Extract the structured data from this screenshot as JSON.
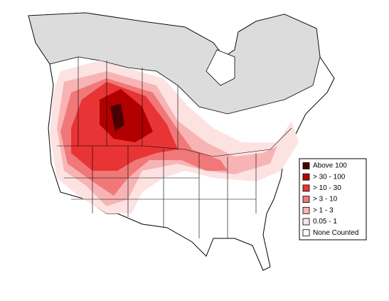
{
  "legend": {
    "items": [
      {
        "label": "Above 100",
        "color": "#4a0000"
      },
      {
        "label": "> 30 - 100",
        "color": "#b20000"
      },
      {
        "label": "> 10 - 30",
        "color": "#e83434"
      },
      {
        "label": "> 3 - 10",
        "color": "#f07878"
      },
      {
        "label": "> 1 - 3",
        "color": "#f8b4b4"
      },
      {
        "label": "0.05 - 1",
        "color": "#fde2e2"
      },
      {
        "label": "None Counted",
        "color": "#ffffff"
      }
    ]
  }
}
